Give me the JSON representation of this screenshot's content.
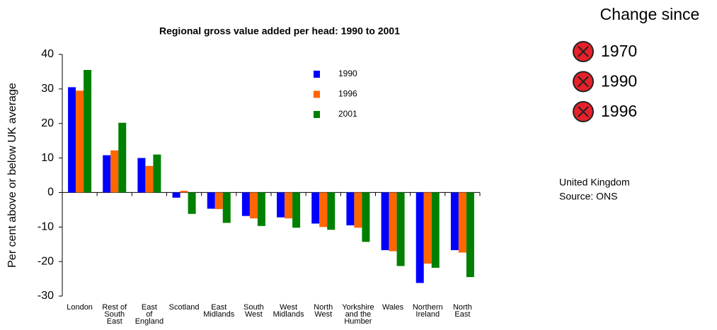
{
  "chart_data": {
    "type": "bar",
    "title": "Regional gross value added per head: 1990 to 2001",
    "y_label": "Per cent above or below UK average",
    "categories": [
      "London",
      "Rest of\nSouth\nEast",
      "East\nof\nEngland",
      "Scotland",
      "East\nMidlands",
      "South\nWest",
      "West\nMidlands",
      "North\nWest",
      "Yorkshire\nand the\nHumber",
      "Wales",
      "Northern\nIreland",
      "North\nEast"
    ],
    "series": [
      {
        "name": "1990",
        "color": "#0000ff",
        "values": [
          30.5,
          10.8,
          10,
          -1.5,
          -4.7,
          -6.8,
          -7.2,
          -9,
          -9.5,
          -16.7,
          -26.2,
          -16.7
        ]
      },
      {
        "name": "1996",
        "color": "#ff6600",
        "values": [
          29.5,
          12.2,
          7.7,
          0.5,
          -4.8,
          -7.5,
          -7.5,
          -10,
          -10.2,
          -17,
          -20.6,
          -17.4
        ]
      },
      {
        "name": "2001",
        "color": "#008000",
        "values": [
          35.5,
          20.2,
          11,
          -6.2,
          -8.8,
          -9.7,
          -10.2,
          -10.8,
          -14.3,
          -21.3,
          -21.8,
          -24.5
        ]
      }
    ],
    "ylim": [
      -30,
      40
    ],
    "yticks": [
      -30,
      -20,
      -10,
      0,
      10,
      20,
      30,
      40
    ],
    "grid": false
  },
  "panel": {
    "title": "Change since",
    "items": [
      "1970",
      "1990",
      "1996"
    ]
  },
  "notes": [
    "United Kingdom",
    "Source: ONS"
  ]
}
